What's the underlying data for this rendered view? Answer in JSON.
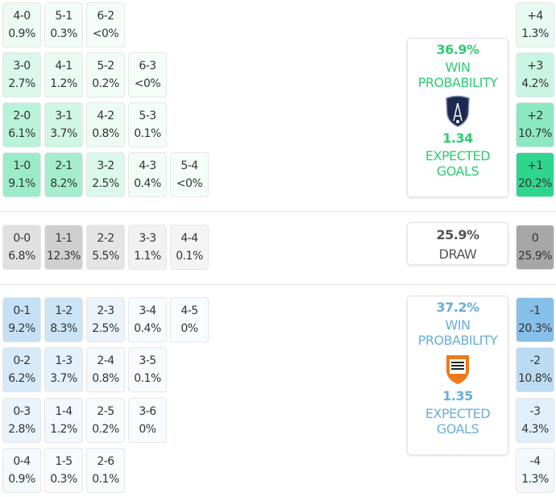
{
  "colors": {
    "home": "#2ed68d",
    "draw": "#a6a6a6",
    "away": "#86bfe8",
    "home_text": "#2ecc71",
    "away_text": "#6aaed8"
  },
  "home_grid": [
    [
      {
        "score": "4-0",
        "pct": "0.9%"
      },
      {
        "score": "5-1",
        "pct": "0.3%"
      },
      {
        "score": "6-2",
        "pct": "<0%"
      }
    ],
    [
      {
        "score": "3-0",
        "pct": "2.7%"
      },
      {
        "score": "4-1",
        "pct": "1.2%"
      },
      {
        "score": "5-2",
        "pct": "0.2%"
      },
      {
        "score": "6-3",
        "pct": "<0%"
      }
    ],
    [
      {
        "score": "2-0",
        "pct": "6.1%"
      },
      {
        "score": "3-1",
        "pct": "3.7%"
      },
      {
        "score": "4-2",
        "pct": "0.8%"
      },
      {
        "score": "5-3",
        "pct": "0.1%"
      }
    ],
    [
      {
        "score": "1-0",
        "pct": "9.1%"
      },
      {
        "score": "2-1",
        "pct": "8.2%"
      },
      {
        "score": "3-2",
        "pct": "2.5%"
      },
      {
        "score": "4-3",
        "pct": "0.4%"
      },
      {
        "score": "5-4",
        "pct": "<0%"
      }
    ]
  ],
  "draw_grid": [
    [
      {
        "score": "0-0",
        "pct": "6.8%"
      },
      {
        "score": "1-1",
        "pct": "12.3%"
      },
      {
        "score": "2-2",
        "pct": "5.5%"
      },
      {
        "score": "3-3",
        "pct": "1.1%"
      },
      {
        "score": "4-4",
        "pct": "0.1%"
      }
    ]
  ],
  "away_grid": [
    [
      {
        "score": "0-1",
        "pct": "9.2%"
      },
      {
        "score": "1-2",
        "pct": "8.3%"
      },
      {
        "score": "2-3",
        "pct": "2.5%"
      },
      {
        "score": "3-4",
        "pct": "0.4%"
      },
      {
        "score": "4-5",
        "pct": "0%"
      }
    ],
    [
      {
        "score": "0-2",
        "pct": "6.2%"
      },
      {
        "score": "1-3",
        "pct": "3.7%"
      },
      {
        "score": "2-4",
        "pct": "0.8%"
      },
      {
        "score": "3-5",
        "pct": "0.1%"
      }
    ],
    [
      {
        "score": "0-3",
        "pct": "2.8%"
      },
      {
        "score": "1-4",
        "pct": "1.2%"
      },
      {
        "score": "2-5",
        "pct": "0.2%"
      },
      {
        "score": "3-6",
        "pct": "0%"
      }
    ],
    [
      {
        "score": "0-4",
        "pct": "0.9%"
      },
      {
        "score": "1-5",
        "pct": "0.3%"
      },
      {
        "score": "2-6",
        "pct": "0.1%"
      }
    ]
  ],
  "margins": [
    {
      "label": "+4",
      "pct": "1.3%",
      "side": "home"
    },
    {
      "label": "+3",
      "pct": "4.2%",
      "side": "home"
    },
    {
      "label": "+2",
      "pct": "10.7%",
      "side": "home"
    },
    {
      "label": "+1",
      "pct": "20.2%",
      "side": "home"
    },
    {
      "label": "0",
      "pct": "25.9%",
      "side": "draw"
    },
    {
      "label": "-1",
      "pct": "20.3%",
      "side": "away"
    },
    {
      "label": "-2",
      "pct": "10.8%",
      "side": "away"
    },
    {
      "label": "-3",
      "pct": "4.3%",
      "side": "away"
    },
    {
      "label": "-4",
      "pct": "1.3%",
      "side": "away"
    }
  ],
  "home": {
    "win_pct": "36.9%",
    "win_label_1": "WIN",
    "win_label_2": "PROBABILITY",
    "xg": "1.34",
    "xg_label_1": "EXPECTED",
    "xg_label_2": "GOALS",
    "logo_text": "PARIS FC"
  },
  "draw": {
    "pct": "25.9%",
    "label": "DRAW"
  },
  "away": {
    "win_pct": "37.2%",
    "win_label_1": "WIN",
    "win_label_2": "PROBABILITY",
    "xg": "1.35",
    "xg_label_1": "EXPECTED",
    "xg_label_2": "GOALS",
    "logo_text": "FC LORIENT"
  }
}
